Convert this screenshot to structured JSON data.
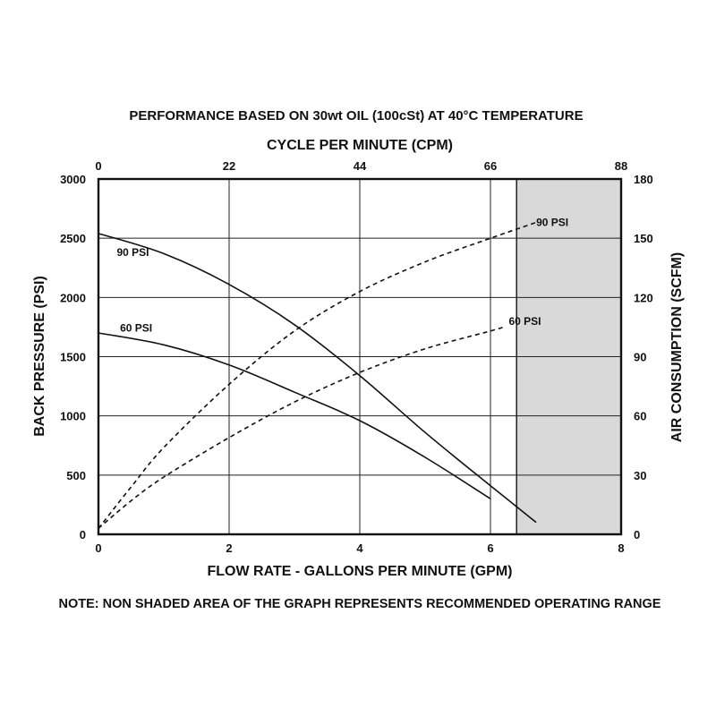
{
  "chart_data": {
    "type": "line",
    "title": "PERFORMANCE BASED ON 30wt OIL (100cSt) AT 40°C TEMPERATURE",
    "top_axis": {
      "label": "CYCLE PER MINUTE (CPM)",
      "ticks": [
        "0",
        "22",
        "44",
        "66",
        "88"
      ],
      "range": [
        0,
        88
      ]
    },
    "x_axis": {
      "label": "FLOW RATE - GALLONS PER MINUTE (GPM)",
      "ticks": [
        "0",
        "2",
        "4",
        "6",
        "8"
      ],
      "range": [
        0,
        8
      ]
    },
    "y_axis": {
      "label": "BACK PRESSURE (PSI)",
      "ticks": [
        "0",
        "500",
        "1000",
        "1500",
        "2000",
        "2500",
        "3000"
      ],
      "range": [
        0,
        3000
      ]
    },
    "y2_axis": {
      "label": "AIR CONSUMPTION (SCFM)",
      "ticks": [
        "0",
        "30",
        "60",
        "90",
        "120",
        "150",
        "180"
      ],
      "range": [
        0,
        180
      ]
    },
    "grid": true,
    "shaded_region": {
      "x_from": 6.4,
      "x_to": 8,
      "color": "#d9d9d9"
    },
    "series": [
      {
        "name": "90 PSI",
        "kind": "back-pressure",
        "axis": "left",
        "style": "solid",
        "x": [
          0,
          1,
          2,
          3,
          4,
          5,
          6,
          6.7
        ],
        "y": [
          2540,
          2370,
          2110,
          1770,
          1340,
          860,
          410,
          100
        ]
      },
      {
        "name": "60 PSI",
        "kind": "back-pressure",
        "axis": "left",
        "style": "solid",
        "x": [
          0,
          1,
          2,
          3,
          4,
          5,
          6
        ],
        "y": [
          1700,
          1600,
          1430,
          1200,
          960,
          650,
          300
        ]
      },
      {
        "name": "90 PSI",
        "kind": "air-consumption",
        "axis": "right",
        "style": "dashed",
        "x": [
          0,
          0.5,
          1,
          2,
          3,
          4,
          5,
          6,
          6.7
        ],
        "y": [
          3,
          24,
          44,
          76,
          103,
          123,
          138,
          150,
          158
        ]
      },
      {
        "name": "60 PSI",
        "kind": "air-consumption",
        "axis": "right",
        "style": "dashed",
        "x": [
          0,
          0.5,
          1,
          2,
          3,
          4,
          5,
          6,
          6.2
        ],
        "y": [
          3,
          17,
          29,
          49,
          67,
          82,
          94,
          103,
          105
        ]
      }
    ],
    "note": "NOTE: NON SHADED AREA OF THE GRAPH REPRESENTS RECOMMENDED OPERATING RANGE"
  }
}
